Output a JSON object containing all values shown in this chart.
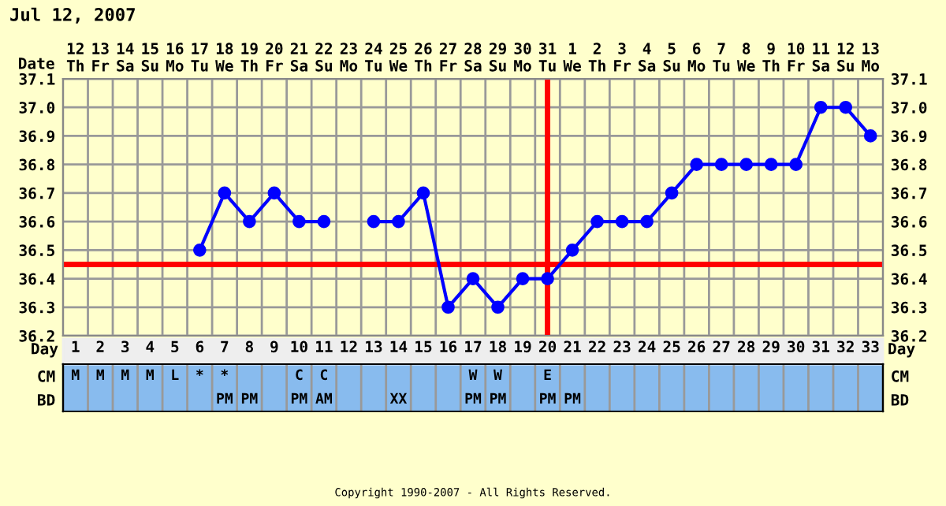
{
  "chart_data": [
    {
      "type": "line",
      "title": "Jul 12, 2007",
      "x2label": "Date",
      "categories": [
        "12\nTh",
        "13\nFr",
        "14\nSa",
        "15\nSu",
        "16\nMo",
        "17\nTu",
        "18\nWe",
        "19\nTh",
        "20\nFr",
        "21\nSa",
        "22\nSu",
        "23\nMo",
        "24\nTu",
        "25\nWe",
        "26\nTh",
        "27\nFr",
        "28\nSa",
        "29\nSu",
        "30\nMo",
        "31\nTu",
        "1\nWe",
        "2\nTh",
        "3\nFr",
        "4\nSa",
        "5\nSu",
        "6\nMo",
        "7\nTu",
        "8\nWe",
        "9\nTh",
        "10\nFr",
        "11\nSa",
        "12\nSu",
        "13\nMo"
      ],
      "series": [
        {
          "color": "#0000ff",
          "values": [
            null,
            null,
            null,
            null,
            null,
            36.5,
            36.7,
            36.6,
            36.7,
            36.6,
            36.6,
            null,
            36.6,
            36.6,
            36.7,
            36.3,
            36.4,
            36.3,
            36.4,
            36.4,
            36.5,
            36.6,
            36.6,
            36.6,
            36.7,
            36.8,
            36.8,
            36.8,
            36.8,
            36.8,
            37.0,
            37.0,
            36.9
          ]
        }
      ],
      "marker": "circle",
      "line_style": "solid",
      "grid": true,
      "ylim": [
        36.2,
        37.1
      ],
      "yticks": [
        36.2,
        36.3,
        36.4,
        36.5,
        36.6,
        36.7,
        36.8,
        36.9,
        {
          "value": 37,
          "label": "37.0"
        },
        37.1
      ],
      "y2lim": [
        36.2,
        37.1
      ],
      "y2ticks": [
        36.2,
        36.3,
        36.4,
        36.5,
        36.6,
        36.7,
        36.8,
        36.9,
        {
          "value": 37,
          "label": "37.0"
        },
        37.1
      ],
      "ref_lines": [
        {
          "axis": "y",
          "value": 36.45,
          "color": "#ff0000"
        },
        {
          "axis": "x",
          "value": "31\nTu",
          "color": "#ff0000"
        }
      ]
    },
    {
      "type": "heatmap",
      "xlabel": "Day",
      "categories": [
        "1",
        "2",
        "3",
        "4",
        "5",
        "6",
        "7",
        "8",
        "9",
        "10",
        "11",
        "12",
        "13",
        "14",
        "15",
        "16",
        "17",
        "18",
        "19",
        "20",
        "21",
        "22",
        "23",
        "24",
        "25",
        "26",
        "27",
        "28",
        "29",
        "30",
        "31",
        "32",
        "33"
      ],
      "y_categories": [
        "CM",
        "BD"
      ],
      "y2_categories": [
        "CM",
        "BD"
      ],
      "cells": [
        [
          null,
          null,
          null,
          null,
          null,
          null,
          null,
          null,
          null,
          null,
          null,
          null,
          null,
          null,
          null,
          null,
          null,
          null,
          null,
          null,
          null,
          null,
          null,
          null,
          null,
          null,
          null,
          null,
          null,
          null,
          null,
          null,
          null
        ],
        [
          null,
          null,
          null,
          null,
          null,
          null,
          null,
          null,
          null,
          null,
          null,
          null,
          null,
          null,
          null,
          null,
          null,
          null,
          null,
          null,
          null,
          null,
          null,
          null,
          null,
          null,
          null,
          null,
          null,
          null,
          null,
          null,
          null
        ]
      ],
      "cell_labels": [
        [
          "M",
          "M",
          "M",
          "M",
          "L",
          "*",
          "*",
          null,
          null,
          "C",
          "C",
          null,
          null,
          null,
          null,
          null,
          "W",
          "W",
          null,
          "E",
          null,
          null,
          null,
          null,
          null,
          null,
          null,
          null,
          null,
          null,
          null,
          null,
          null
        ],
        [
          null,
          null,
          null,
          null,
          null,
          null,
          "PM",
          "PM",
          null,
          "PM",
          "AM",
          null,
          null,
          "XX",
          null,
          null,
          "PM",
          "PM",
          null,
          "PM",
          "PM",
          null,
          null,
          null,
          null,
          null,
          null,
          null,
          null,
          null,
          null,
          null,
          null
        ]
      ],
      "annotations": [
        "Copyright 1990-2007 - All Rights Reserved."
      ]
    }
  ]
}
